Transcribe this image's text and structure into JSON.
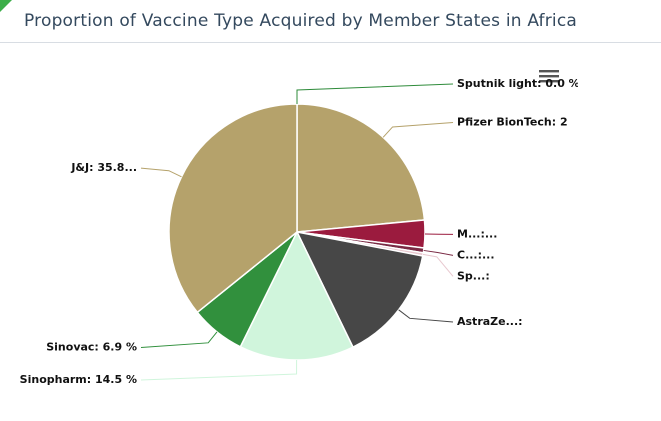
{
  "chart_data": {
    "type": "pie",
    "title": "Proportion of Vaccine Type Acquired by Member States in Africa",
    "values": [
      0.0,
      23.5,
      3.5,
      0.6,
      0.4,
      14.8,
      14.5,
      6.9,
      35.8
    ],
    "value_labels": [
      "Sputnik light: 0.0 %",
      "Pfizer BionTech: 2",
      "M...:...",
      "C...:...",
      "Sp...:",
      "AstraZe...:",
      "Sinopharm: 14.5 %",
      "Sinovac: 6.9 %",
      "J&J: 35.8..."
    ],
    "colors": [
      "#2e8b3a",
      "#b5a26b",
      "#9b1b3e",
      "#7a2a44",
      "#e8c8cf",
      "#474747",
      "#d0f5dc",
      "#31903d",
      "#b5a26b"
    ]
  }
}
